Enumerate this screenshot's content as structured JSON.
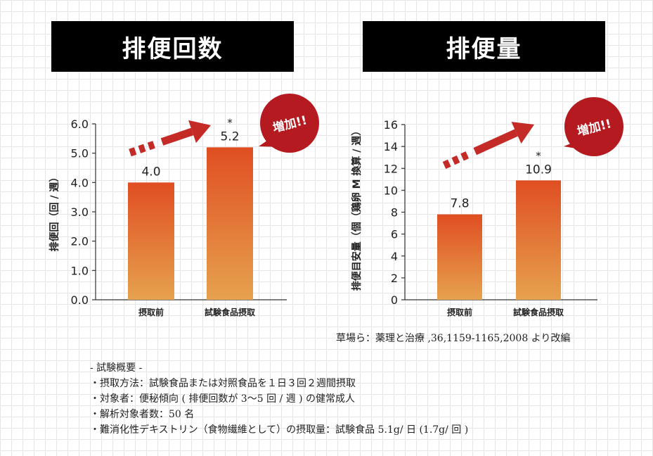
{
  "panels": {
    "left_title": "排便回数",
    "right_title": "排便量"
  },
  "chart_data": [
    {
      "type": "bar",
      "title": "排便回数",
      "ylabel": "排便回（回 / 週）",
      "categories": [
        "摂取前",
        "試験食品摂取"
      ],
      "values": [
        4.0,
        5.2
      ],
      "value_labels": [
        "4.0",
        "5.2"
      ],
      "ylim": [
        0,
        6
      ],
      "yticks": [
        "0.0",
        "1.0",
        "2.0",
        "3.0",
        "4.0",
        "5.0",
        "6.0"
      ],
      "significance_marker": "*",
      "callout": "増加!!"
    },
    {
      "type": "bar",
      "title": "排便量",
      "ylabel": "排便目安量（個（鶏卵 M 換算 / 週）",
      "categories": [
        "摂取前",
        "試験食品摂取"
      ],
      "values": [
        7.8,
        10.9
      ],
      "value_labels": [
        "7.8",
        "10.9"
      ],
      "ylim": [
        0,
        16
      ],
      "yticks": [
        "0",
        "2",
        "4",
        "6",
        "8",
        "10",
        "12",
        "14",
        "16"
      ],
      "significance_marker": "*",
      "callout": "増加!!"
    }
  ],
  "colors": {
    "bar_top": "#e04e22",
    "bar_bottom": "#e6a24e",
    "arrow": "#c42a26",
    "callout": "#b41a1f"
  },
  "source": "草場ら：薬理と治療 ,36,1159-1165,2008 より改編",
  "notes": [
    "- 試験概要 -",
    "・摂取方法：試験食品または対照食品を１日３回２週間摂取",
    "・対象者：便秘傾向 ( 排便回数が 3〜5 回 / 週 ) の健常成人",
    "・解析対象者数：50 名",
    "・難消化性デキストリン（食物繊維として）の摂取量：試験食品 5.1g/ 日 (1.7g/ 回 )"
  ]
}
